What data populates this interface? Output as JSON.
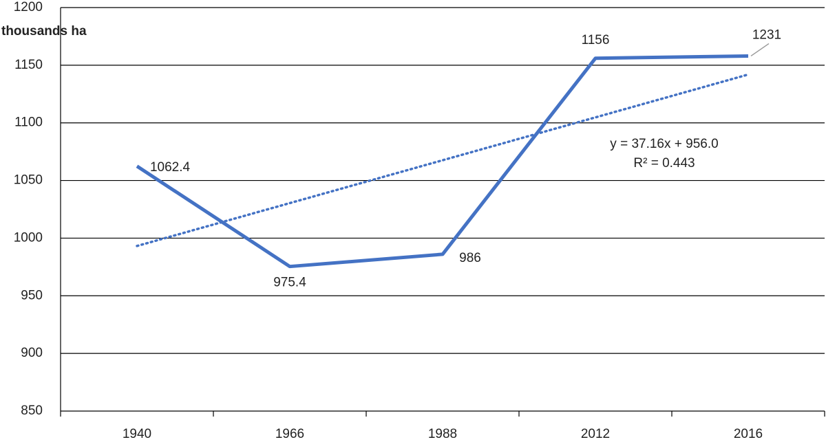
{
  "chart_data": {
    "type": "line",
    "y_label": "thousands ha",
    "categories": [
      "1940",
      "1966",
      "1988",
      "2012",
      "2016"
    ],
    "series": [
      {
        "color": "#4472c4",
        "values": [
          1062.4,
          975.4,
          986,
          1156,
          1158
        ],
        "value_labels": [
          "1062.4",
          "975.4",
          "986",
          "1156",
          null
        ]
      }
    ],
    "annotations": [
      "1231"
    ],
    "trendline": {
      "equation": "y = 37.16x + 956.0",
      "r2": "R² = 0.443",
      "style": "dotted"
    },
    "ylim": [
      850,
      1200
    ],
    "yticks": [
      850,
      900,
      950,
      1000,
      1050,
      1100,
      1150,
      1200
    ],
    "grid": true
  }
}
